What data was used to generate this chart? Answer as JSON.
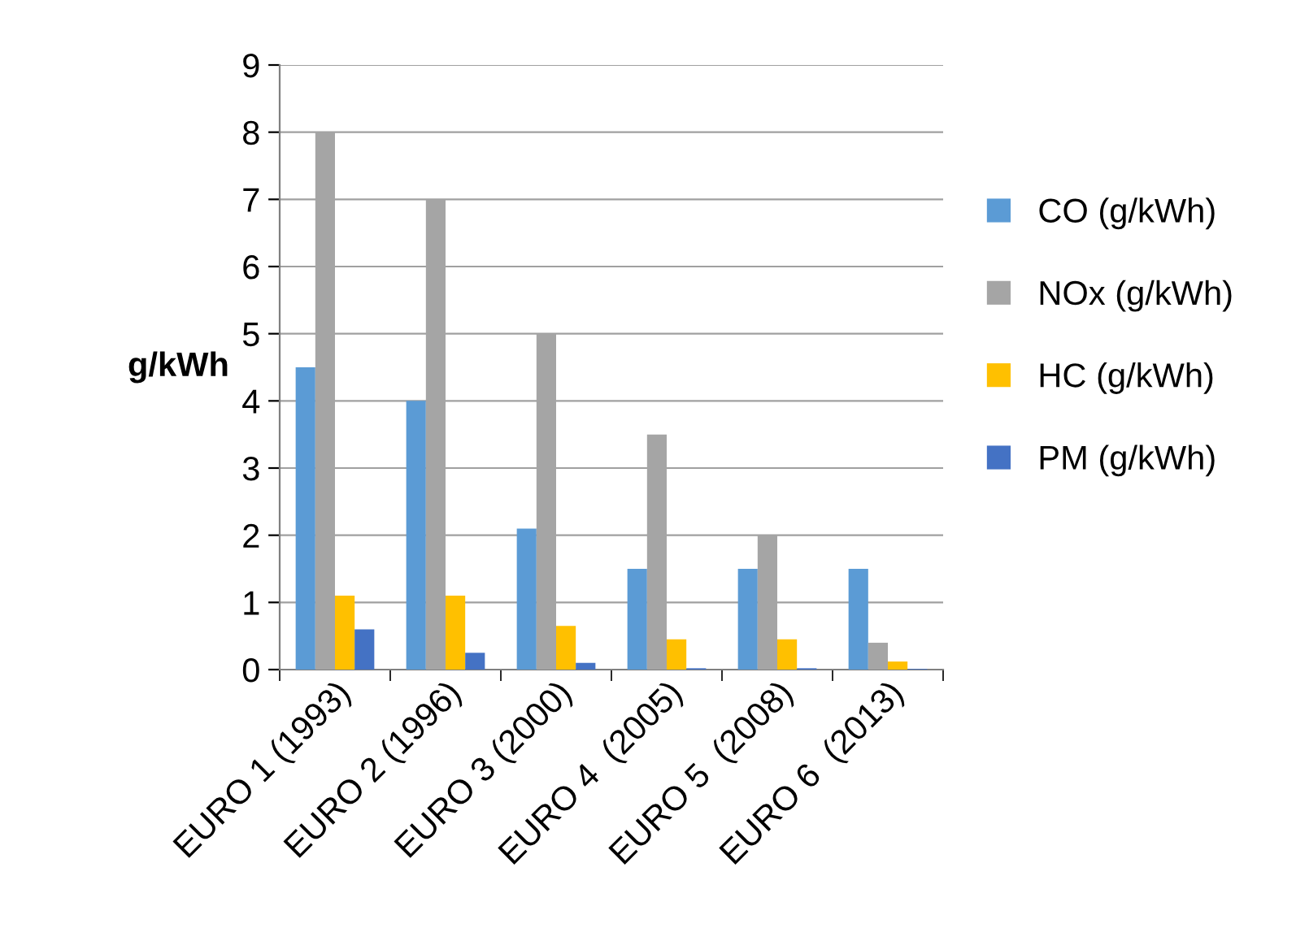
{
  "chart_data": {
    "type": "bar",
    "ylabel": "g/kWh",
    "categories": [
      "EURO 1 (1993)",
      "EURO 2 (1996)",
      "EURO 3 (2000)",
      "EURO 4  (2005)",
      "EURO 5  (2008)",
      "EURO 6  (2013)"
    ],
    "series": [
      {
        "name": "CO (g/kWh)",
        "color": "#5b9bd5",
        "values": [
          4.5,
          4.0,
          2.1,
          1.5,
          1.5,
          1.5
        ]
      },
      {
        "name": "NOx (g/kWh)",
        "color": "#a5a5a5",
        "values": [
          8.0,
          7.0,
          5.0,
          3.5,
          2.0,
          0.4
        ]
      },
      {
        "name": "HC (g/kWh)",
        "color": "#ffc000",
        "values": [
          1.1,
          1.1,
          0.65,
          0.45,
          0.45,
          0.12
        ]
      },
      {
        "name": "PM (g/kWh)",
        "color": "#4472c4",
        "values": [
          0.6,
          0.25,
          0.1,
          0.02,
          0.02,
          0.01
        ]
      }
    ],
    "ylim": [
      0,
      9
    ],
    "yticks": [
      0,
      1,
      2,
      3,
      4,
      5,
      6,
      7,
      8,
      9
    ],
    "grid": "y",
    "legend": "right"
  }
}
